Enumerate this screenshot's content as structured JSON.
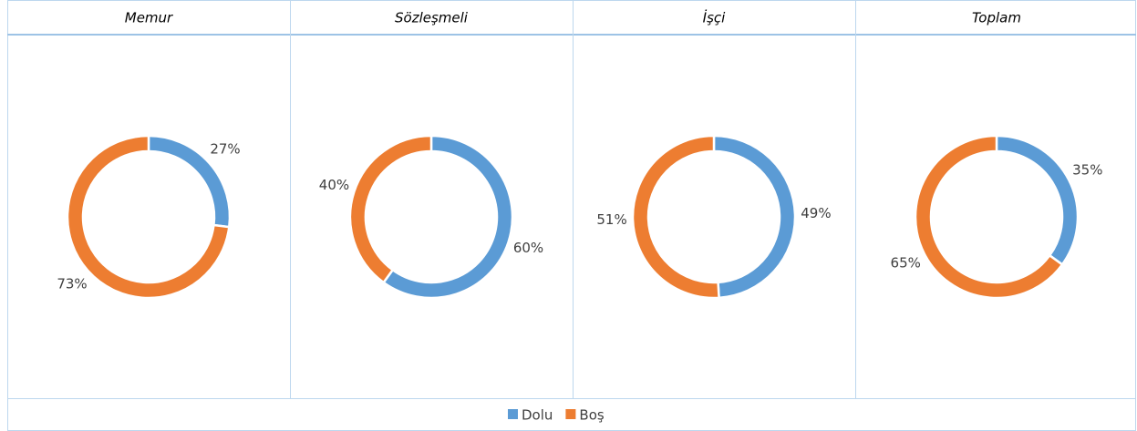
{
  "chart_data": [
    {
      "type": "donut",
      "title": "Memur",
      "values": [
        27,
        73
      ],
      "value_labels": [
        "27%",
        "73%"
      ]
    },
    {
      "type": "donut",
      "title": "Sözleşmeli",
      "values": [
        60,
        40
      ],
      "value_labels": [
        "60%",
        "40%"
      ]
    },
    {
      "type": "donut",
      "title": "İşçi",
      "values": [
        49,
        51
      ],
      "value_labels": [
        "49%",
        "51%"
      ]
    },
    {
      "type": "donut",
      "title": "Toplam",
      "values": [
        35,
        65
      ],
      "value_labels": [
        "35%",
        "65%"
      ]
    }
  ],
  "legend": {
    "items": [
      {
        "name": "Dolu",
        "color": "#5b9bd5"
      },
      {
        "name": "Boş",
        "color": "#ed7d31"
      }
    ]
  }
}
